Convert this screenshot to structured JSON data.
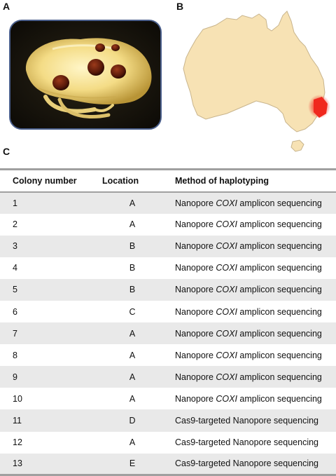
{
  "panels": {
    "a": "A",
    "b": "B",
    "c": "C"
  },
  "colors": {
    "map_land": "#f7e2b4",
    "map_outline": "#c8b48c",
    "highlight": "#f0281e",
    "rule": "#a0a0a0",
    "stripe": "#e9e9e9",
    "photo_border": "#4a5f8c"
  },
  "table": {
    "headers": {
      "colony": "Colony number",
      "location": "Location",
      "method": "Method of haplotyping"
    },
    "rows": [
      {
        "colony": "1",
        "location": "A",
        "method": {
          "pre": "Nanopore ",
          "gene": "COXI",
          "post": " amplicon sequencing"
        }
      },
      {
        "colony": "2",
        "location": "A",
        "method": {
          "pre": "Nanopore ",
          "gene": "COXI",
          "post": " amplicon sequencing"
        }
      },
      {
        "colony": "3",
        "location": "B",
        "method": {
          "pre": "Nanopore ",
          "gene": "COXI",
          "post": " amplicon sequencing"
        }
      },
      {
        "colony": "4",
        "location": "B",
        "method": {
          "pre": "Nanopore ",
          "gene": "COXI",
          "post": " amplicon sequencing"
        }
      },
      {
        "colony": "5",
        "location": "B",
        "method": {
          "pre": "Nanopore ",
          "gene": "COXI",
          "post": " amplicon sequencing"
        }
      },
      {
        "colony": "6",
        "location": "C",
        "method": {
          "pre": "Nanopore ",
          "gene": "COXI",
          "post": " amplicon sequencing"
        }
      },
      {
        "colony": "7",
        "location": "A",
        "method": {
          "pre": "Nanopore ",
          "gene": "COXI",
          "post": " amplicon sequencing"
        }
      },
      {
        "colony": "8",
        "location": "A",
        "method": {
          "pre": "Nanopore ",
          "gene": "COXI",
          "post": " amplicon sequencing"
        }
      },
      {
        "colony": "9",
        "location": "A",
        "method": {
          "pre": "Nanopore ",
          "gene": "COXI",
          "post": " amplicon sequencing"
        }
      },
      {
        "colony": "10",
        "location": "A",
        "method": {
          "pre": "Nanopore ",
          "gene": "COXI",
          "post": " amplicon sequencing"
        }
      },
      {
        "colony": "11",
        "location": "D",
        "method": {
          "pre": "Cas9-targeted Nanopore sequencing",
          "gene": "",
          "post": ""
        }
      },
      {
        "colony": "12",
        "location": "A",
        "method": {
          "pre": "Cas9-targeted Nanopore sequencing",
          "gene": "",
          "post": ""
        }
      },
      {
        "colony": "13",
        "location": "E",
        "method": {
          "pre": "Cas9-targeted Nanopore sequencing",
          "gene": "",
          "post": ""
        }
      }
    ]
  }
}
